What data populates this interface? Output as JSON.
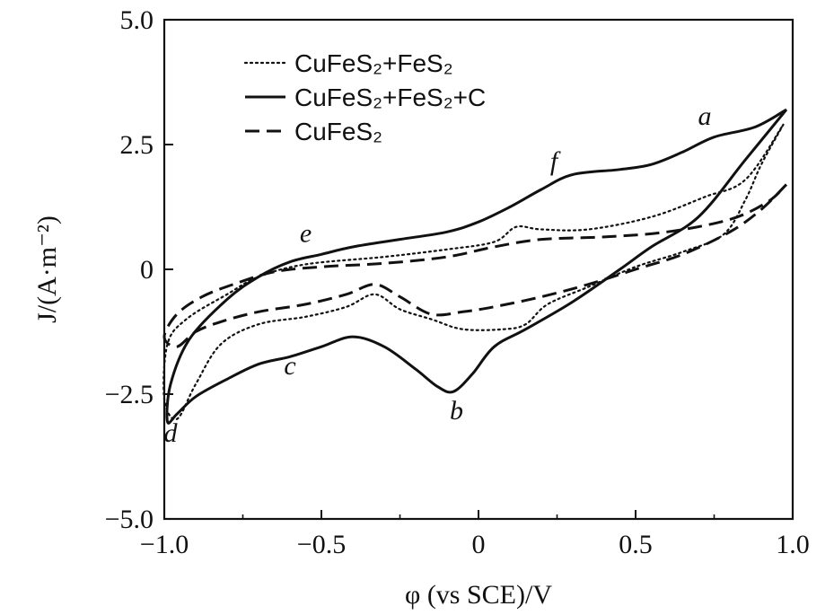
{
  "chart_data": {
    "type": "line",
    "xlabel": "φ (vs SCE)/V",
    "ylabel": "J/(A·m⁻²)",
    "xlim": [
      -1.0,
      1.0
    ],
    "ylim": [
      -5.0,
      5.0
    ],
    "xticks": [
      "−1.0",
      "−0.5",
      "0",
      "0.5",
      "1.0"
    ],
    "yticks": [
      "5.0",
      "2.5",
      "0",
      "−2.5",
      "−5.0"
    ],
    "xtick_values": [
      -1.0,
      -0.5,
      0,
      0.5,
      1.0
    ],
    "ytick_values": [
      5.0,
      2.5,
      0,
      -2.5,
      -5.0
    ],
    "grid": false,
    "legend_position": "top-left",
    "series": [
      {
        "name": "CuFeS₂+FeS₂",
        "style": "dotted",
        "color": "#111111",
        "points": [
          [
            0.97,
            2.9
          ],
          [
            0.9,
            2.1
          ],
          [
            0.85,
            1.4
          ],
          [
            0.78,
            0.7
          ],
          [
            0.65,
            0.35
          ],
          [
            0.5,
            0.05
          ],
          [
            0.35,
            -0.35
          ],
          [
            0.22,
            -0.7
          ],
          [
            0.15,
            -1.1
          ],
          [
            0.08,
            -1.2
          ],
          [
            -0.05,
            -1.2
          ],
          [
            -0.15,
            -1.0
          ],
          [
            -0.25,
            -0.8
          ],
          [
            -0.33,
            -0.5
          ],
          [
            -0.42,
            -0.75
          ],
          [
            -0.55,
            -0.95
          ],
          [
            -0.7,
            -1.1
          ],
          [
            -0.82,
            -1.5
          ],
          [
            -0.9,
            -2.3
          ],
          [
            -0.96,
            -3.0
          ],
          [
            -1.0,
            -2.6
          ],
          [
            -0.99,
            -1.5
          ],
          [
            -0.93,
            -1.0
          ],
          [
            -0.8,
            -0.5
          ],
          [
            -0.7,
            -0.15
          ],
          [
            -0.55,
            0.1
          ],
          [
            -0.3,
            0.25
          ],
          [
            -0.1,
            0.4
          ],
          [
            0.05,
            0.55
          ],
          [
            0.12,
            0.85
          ],
          [
            0.2,
            0.8
          ],
          [
            0.35,
            0.8
          ],
          [
            0.55,
            1.05
          ],
          [
            0.72,
            1.45
          ],
          [
            0.85,
            1.8
          ],
          [
            0.97,
            2.9
          ]
        ]
      },
      {
        "name": "CuFeS₂+FeS₂+C",
        "style": "solid",
        "color": "#111111",
        "points": [
          [
            0.98,
            3.2
          ],
          [
            0.85,
            2.2
          ],
          [
            0.7,
            1.05
          ],
          [
            0.55,
            0.45
          ],
          [
            0.45,
            0.0
          ],
          [
            0.3,
            -0.65
          ],
          [
            0.15,
            -1.2
          ],
          [
            0.05,
            -1.55
          ],
          [
            -0.02,
            -2.1
          ],
          [
            -0.08,
            -2.45
          ],
          [
            -0.13,
            -2.35
          ],
          [
            -0.2,
            -2.0
          ],
          [
            -0.3,
            -1.55
          ],
          [
            -0.4,
            -1.35
          ],
          [
            -0.5,
            -1.55
          ],
          [
            -0.6,
            -1.75
          ],
          [
            -0.7,
            -1.9
          ],
          [
            -0.8,
            -2.2
          ],
          [
            -0.9,
            -2.55
          ],
          [
            -0.96,
            -2.9
          ],
          [
            -0.99,
            -3.05
          ],
          [
            -0.98,
            -2.3
          ],
          [
            -0.92,
            -1.4
          ],
          [
            -0.8,
            -0.6
          ],
          [
            -0.7,
            -0.15
          ],
          [
            -0.6,
            0.15
          ],
          [
            -0.5,
            0.3
          ],
          [
            -0.4,
            0.45
          ],
          [
            -0.25,
            0.6
          ],
          [
            -0.1,
            0.75
          ],
          [
            0.0,
            0.95
          ],
          [
            0.1,
            1.25
          ],
          [
            0.2,
            1.6
          ],
          [
            0.3,
            1.9
          ],
          [
            0.45,
            2.0
          ],
          [
            0.55,
            2.1
          ],
          [
            0.65,
            2.35
          ],
          [
            0.75,
            2.65
          ],
          [
            0.88,
            2.85
          ],
          [
            0.98,
            3.2
          ]
        ]
      },
      {
        "name": "CuFeS₂",
        "style": "dashed",
        "color": "#111111",
        "points": [
          [
            0.98,
            1.7
          ],
          [
            0.9,
            1.2
          ],
          [
            0.8,
            0.75
          ],
          [
            0.65,
            0.3
          ],
          [
            0.5,
            0.0
          ],
          [
            0.35,
            -0.3
          ],
          [
            0.2,
            -0.55
          ],
          [
            0.05,
            -0.75
          ],
          [
            -0.05,
            -0.85
          ],
          [
            -0.15,
            -0.9
          ],
          [
            -0.25,
            -0.55
          ],
          [
            -0.33,
            -0.3
          ],
          [
            -0.42,
            -0.5
          ],
          [
            -0.55,
            -0.7
          ],
          [
            -0.7,
            -0.85
          ],
          [
            -0.82,
            -1.05
          ],
          [
            -0.9,
            -1.25
          ],
          [
            -0.96,
            -1.55
          ],
          [
            -1.0,
            -1.35
          ],
          [
            -0.96,
            -0.9
          ],
          [
            -0.88,
            -0.55
          ],
          [
            -0.78,
            -0.3
          ],
          [
            -0.65,
            -0.05
          ],
          [
            -0.5,
            0.05
          ],
          [
            -0.3,
            0.12
          ],
          [
            -0.1,
            0.25
          ],
          [
            0.05,
            0.45
          ],
          [
            0.2,
            0.6
          ],
          [
            0.4,
            0.65
          ],
          [
            0.6,
            0.75
          ],
          [
            0.8,
            1.0
          ],
          [
            0.92,
            1.35
          ],
          [
            0.98,
            1.7
          ]
        ]
      }
    ],
    "annotations": [
      {
        "text": "a",
        "x": 0.72,
        "y": 2.9
      },
      {
        "text": "b",
        "x": -0.07,
        "y": -3.0
      },
      {
        "text": "c",
        "x": -0.6,
        "y": -2.1
      },
      {
        "text": "d",
        "x": -0.98,
        "y": -3.45
      },
      {
        "text": "e",
        "x": -0.55,
        "y": 0.55
      },
      {
        "text": "f",
        "x": 0.24,
        "y": 2.0
      }
    ]
  }
}
